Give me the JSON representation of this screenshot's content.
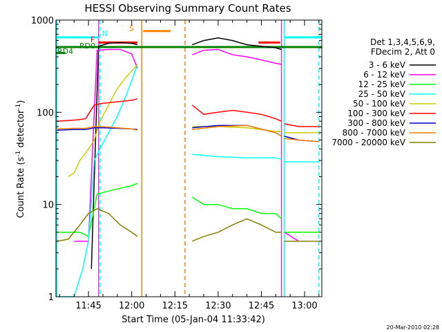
{
  "chart_data": {
    "type": "line",
    "title": "HESSI Observing Summary Count Rates",
    "xlabel": "Start Time (05-Jan-04 11:33:42)",
    "ylabel_main": "Count Rate (s",
    "ylabel_sup1": "-1",
    "ylabel_mid": " detector",
    "ylabel_sup2": "-1",
    "ylabel_end": ")",
    "y_scale": "log",
    "ylim": [
      1,
      1000
    ],
    "xlim": [
      "11:33:42",
      "13:06:00"
    ],
    "x_ticks": [
      "11:45",
      "12:00",
      "12:15",
      "12:30",
      "12:45",
      "13:00"
    ],
    "y_ticks": [
      "1",
      "10",
      "100",
      "1000"
    ],
    "legend_title": [
      "Det 1,3,4,5,6,9,",
      "FDecim 2, Att 0"
    ],
    "legend_position": "right",
    "footer_timestamp": "20-Mar-2010 02:28",
    "flag_labels": {
      "N": "N",
      "F": "F",
      "S": "S",
      "RD0": "RD0",
      "RD4": "RD4"
    },
    "vertical_markers": [
      {
        "time": "11:34:00",
        "color": "#00ffff",
        "style": "solid"
      },
      {
        "time": "11:49:00",
        "color": "#00ffff",
        "style": "dashed"
      },
      {
        "time": "11:48:30",
        "color": "#cc44cc",
        "style": "solid"
      },
      {
        "time": "12:03:30",
        "color": "#ff8000",
        "style": "solid"
      },
      {
        "time": "12:18:30",
        "color": "#ff8000",
        "style": "dashed"
      },
      {
        "time": "12:53:00",
        "color": "#00ffff",
        "style": "solid"
      },
      {
        "time": "12:52:00",
        "color": "#cc44cc",
        "style": "solid"
      },
      {
        "time": "13:05:00",
        "color": "#00ffff",
        "style": "dashed"
      }
    ],
    "bars": [
      {
        "label": "N",
        "color": "#00ffff",
        "y": 650,
        "segments": [
          [
            "11:33:42",
            "11:48:30"
          ],
          [
            "12:53:00",
            "13:06:00"
          ]
        ]
      },
      {
        "label": "F",
        "color": "#ff0000",
        "y": 570,
        "segments": [
          [
            "11:48:30",
            "12:02:00"
          ],
          [
            "12:44:00",
            "12:51:30"
          ]
        ]
      },
      {
        "label": "S",
        "color": "#ff8000",
        "y": 760,
        "segments": [
          [
            "12:04:00",
            "12:13:30"
          ]
        ]
      },
      {
        "label": "RD0",
        "color": "#008000",
        "y": 510,
        "segments": [
          [
            "11:33:42",
            "13:06:00"
          ]
        ]
      },
      {
        "label": "RD4",
        "color": "#008000",
        "y": 440,
        "segments": [
          [
            "11:33:42",
            "11:37:00"
          ]
        ]
      }
    ],
    "series": [
      {
        "name": "3 - 6 keV",
        "color": "#000000",
        "segments": [
          [
            [
              "11:46:00",
              2
            ],
            [
              "11:48:30",
              520
            ],
            [
              "11:52:00",
              560
            ],
            [
              "11:56:00",
              570
            ],
            [
              "12:00:00",
              560
            ],
            [
              "12:02:00",
              540
            ]
          ],
          [
            [
              "12:21:00",
              540
            ],
            [
              "12:25:00",
              600
            ],
            [
              "12:30:00",
              640
            ],
            [
              "12:35:00",
              600
            ],
            [
              "12:40:00",
              540
            ],
            [
              "12:45:00",
              520
            ],
            [
              "12:50:00",
              500
            ],
            [
              "12:52:00",
              480
            ]
          ]
        ]
      },
      {
        "name": "6 - 12 keV",
        "color": "#ff00ff",
        "segments": [
          [
            [
              "11:40:00",
              4
            ],
            [
              "11:42:00",
              4
            ],
            [
              "11:45:00",
              4
            ],
            [
              "11:48:00",
              470
            ],
            [
              "11:52:00",
              480
            ],
            [
              "11:56:00",
              480
            ],
            [
              "12:00:00",
              430
            ],
            [
              "12:02:00",
              300
            ]
          ],
          [
            [
              "12:21:00",
              420
            ],
            [
              "12:25:00",
              470
            ],
            [
              "12:30:00",
              480
            ],
            [
              "12:35:00",
              420
            ],
            [
              "12:40:00",
              400
            ],
            [
              "12:45:00",
              370
            ],
            [
              "12:50:00",
              340
            ],
            [
              "12:52:00",
              330
            ]
          ],
          [
            [
              "12:53:00",
              5
            ],
            [
              "12:58:00",
              4
            ],
            [
              "13:05:00",
              4
            ]
          ]
        ]
      },
      {
        "name": "12 - 25 keV",
        "color": "#00ff00",
        "segments": [
          [
            [
              "11:34:00",
              5
            ],
            [
              "11:38:00",
              5
            ],
            [
              "11:42:00",
              5
            ],
            [
              "11:45:00",
              4.5
            ],
            [
              "11:48:00",
              13
            ],
            [
              "11:52:00",
              14
            ],
            [
              "11:56:00",
              15
            ],
            [
              "12:00:00",
              16
            ],
            [
              "12:02:00",
              17
            ]
          ],
          [
            [
              "12:21:00",
              12
            ],
            [
              "12:25:00",
              10
            ],
            [
              "12:30:00",
              10
            ],
            [
              "12:35:00",
              9
            ],
            [
              "12:40:00",
              9
            ],
            [
              "12:45:00",
              8
            ],
            [
              "12:50:00",
              8
            ],
            [
              "12:52:00",
              7
            ]
          ],
          [
            [
              "12:53:00",
              5
            ],
            [
              "12:58:00",
              5
            ],
            [
              "13:05:00",
              5
            ]
          ]
        ]
      },
      {
        "name": "25 - 50 keV",
        "color": "#00ffff",
        "segments": [
          [
            [
              "11:34:00",
              1
            ],
            [
              "11:40:00",
              1
            ],
            [
              "11:43:00",
              2
            ],
            [
              "11:45:00",
              4
            ],
            [
              "11:47:00",
              30
            ],
            [
              "11:49:00",
              40
            ],
            [
              "11:52:00",
              60
            ],
            [
              "11:55:00",
              90
            ],
            [
              "11:58:00",
              150
            ],
            [
              "12:00:00",
              220
            ],
            [
              "12:02:00",
              330
            ]
          ],
          [
            [
              "12:21:00",
              35
            ],
            [
              "12:30:00",
              33
            ],
            [
              "12:40:00",
              32
            ],
            [
              "12:50:00",
              32
            ],
            [
              "12:52:00",
              31
            ]
          ],
          [
            [
              "12:53:00",
              29
            ],
            [
              "12:58:00",
              29
            ],
            [
              "13:05:00",
              29
            ]
          ]
        ]
      },
      {
        "name": "50 - 100 keV",
        "color": "#cccc00",
        "segments": [
          [
            [
              "11:38:00",
              20
            ],
            [
              "11:40:00",
              22
            ],
            [
              "11:42:00",
              30
            ],
            [
              "11:45:00",
              40
            ],
            [
              "11:47:00",
              50
            ],
            [
              "11:49:00",
              80
            ],
            [
              "11:52:00",
              120
            ],
            [
              "11:55:00",
              180
            ],
            [
              "11:58:00",
              240
            ],
            [
              "12:00:00",
              280
            ],
            [
              "12:02:00",
              330
            ]
          ],
          [
            [
              "12:21:00",
              70
            ],
            [
              "12:30:00",
              70
            ],
            [
              "12:40:00",
              68
            ],
            [
              "12:50:00",
              62
            ],
            [
              "12:52:00",
              62
            ]
          ],
          [
            [
              "12:53:00",
              60
            ],
            [
              "12:58:00",
              60
            ],
            [
              "13:05:00",
              60
            ]
          ]
        ]
      },
      {
        "name": "100 - 300 keV",
        "color": "#ff0000",
        "segments": [
          [
            [
              "11:34:00",
              80
            ],
            [
              "11:40:00",
              82
            ],
            [
              "11:44:00",
              85
            ],
            [
              "11:47:00",
              120
            ],
            [
              "11:50:00",
              125
            ],
            [
              "11:55:00",
              130
            ],
            [
              "12:00:00",
              135
            ],
            [
              "12:02:00",
              140
            ]
          ],
          [
            [
              "12:21:00",
              120
            ],
            [
              "12:25:00",
              95
            ],
            [
              "12:30:00",
              100
            ],
            [
              "12:35:00",
              105
            ],
            [
              "12:40:00",
              100
            ],
            [
              "12:45:00",
              95
            ],
            [
              "12:50:00",
              85
            ],
            [
              "12:52:00",
              80
            ]
          ],
          [
            [
              "12:53:00",
              75
            ],
            [
              "12:58:00",
              70
            ],
            [
              "13:05:00",
              70
            ]
          ]
        ]
      },
      {
        "name": "300 - 800 keV",
        "color": "#0000cc",
        "segments": [
          [
            [
              "11:34:00",
              64
            ],
            [
              "11:40:00",
              65
            ],
            [
              "11:44:00",
              65
            ],
            [
              "11:47:00",
              68
            ],
            [
              "11:50:00",
              68
            ],
            [
              "11:55:00",
              67
            ],
            [
              "12:00:00",
              66
            ],
            [
              "12:02:00",
              65
            ]
          ],
          [
            [
              "12:21:00",
              68
            ],
            [
              "12:30:00",
              72
            ],
            [
              "12:40:00",
              72
            ],
            [
              "12:50:00",
              60
            ],
            [
              "12:52:00",
              55
            ]
          ],
          [
            [
              "12:53:00",
              55
            ],
            [
              "12:58:00",
              50
            ],
            [
              "13:05:00",
              48
            ]
          ]
        ]
      },
      {
        "name": "800 - 7000 keV",
        "color": "#ff8000",
        "segments": [
          [
            [
              "11:34:00",
              66
            ],
            [
              "11:40:00",
              67
            ],
            [
              "11:44:00",
              67
            ],
            [
              "11:47:00",
              70
            ],
            [
              "11:50:00",
              70
            ],
            [
              "11:55:00",
              68
            ],
            [
              "12:00:00",
              66
            ],
            [
              "12:02:00",
              64
            ]
          ],
          [
            [
              "12:21:00",
              65
            ],
            [
              "12:30:00",
              70
            ],
            [
              "12:40:00",
              72
            ],
            [
              "12:50:00",
              60
            ],
            [
              "12:52:00",
              55
            ]
          ],
          [
            [
              "12:53:00",
              52
            ],
            [
              "12:58:00",
              50
            ],
            [
              "13:05:00",
              48
            ]
          ]
        ]
      },
      {
        "name": "7000 - 20000 keV",
        "color": "#808000",
        "segments": [
          [
            [
              "11:34:00",
              4
            ],
            [
              "11:38:00",
              4.2
            ],
            [
              "11:42:00",
              6
            ],
            [
              "11:45:00",
              8
            ],
            [
              "11:48:00",
              9
            ],
            [
              "11:52:00",
              8
            ],
            [
              "11:56:00",
              6
            ],
            [
              "12:00:00",
              5
            ],
            [
              "12:02:00",
              4.5
            ]
          ],
          [
            [
              "12:21:00",
              4
            ],
            [
              "12:25:00",
              4.5
            ],
            [
              "12:30:00",
              5
            ],
            [
              "12:35:00",
              6
            ],
            [
              "12:40:00",
              7
            ],
            [
              "12:45:00",
              6
            ],
            [
              "12:50:00",
              5
            ],
            [
              "12:52:00",
              5
            ]
          ],
          [
            [
              "12:53:00",
              4
            ],
            [
              "12:58:00",
              4
            ],
            [
              "13:05:00",
              4
            ]
          ]
        ]
      }
    ]
  }
}
